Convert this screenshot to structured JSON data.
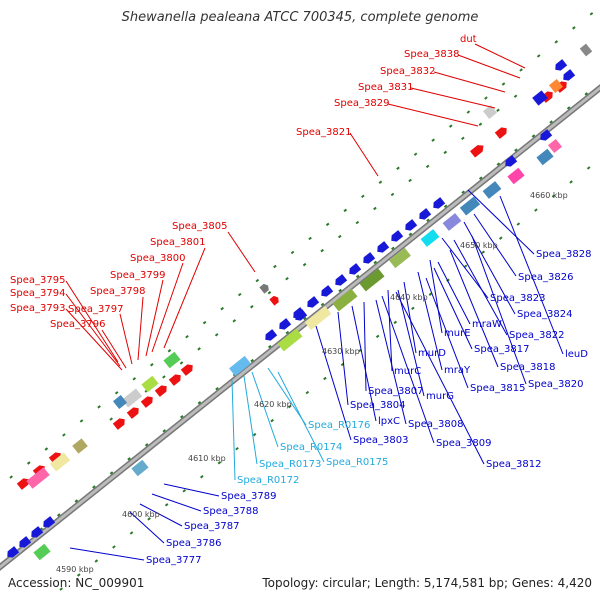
{
  "title": "Shewanella pealeana ATCC 700345, complete genome",
  "footer": {
    "accession": "Accession: NC_009901",
    "stats": "Topology: circular; Length: 5,174,581 bp; Genes: 4,420"
  },
  "colors": {
    "red_label": "#e00000",
    "blue_label": "#0000cc",
    "cyan_label": "#22aadd",
    "backbone": "#999999",
    "tick": "#2a7a2a"
  },
  "kbp_labels": [
    "4590 kbp",
    "4600 kbp",
    "4610 kbp",
    "4620 kbp",
    "4630 kbp",
    "4640 kbp",
    "4650 kbp",
    "4660 kbp"
  ],
  "red_labels": [
    "dut",
    "Spea_3838",
    "Spea_3832",
    "Spea_3831",
    "Spea_3829",
    "Spea_3821",
    "Spea_3805",
    "Spea_3801",
    "Spea_3800",
    "Spea_3799",
    "Spea_3798",
    "Spea_3797",
    "Spea_3796",
    "Spea_3795",
    "Spea_3794",
    "Spea_3793"
  ],
  "blue_labels": [
    "Spea_3828",
    "Spea_3826",
    "Spea_3823",
    "Spea_3824",
    "Spea_3822",
    "leuD",
    "mraW",
    "murE",
    "Spea_3817",
    "Spea_3818",
    "Spea_3820",
    "mraY",
    "murD",
    "Spea_3815",
    "murC",
    "murG",
    "Spea_3807",
    "Spea_3808",
    "Spea_3804",
    "lpxC",
    "Spea_3809",
    "Spea_3803",
    "Spea_3812",
    "Spea_3789",
    "Spea_3788",
    "Spea_3787",
    "Spea_3786",
    "Spea_3777"
  ],
  "cyan_labels": [
    "Spea_R0176",
    "Spea_R0174",
    "Spea_R0175",
    "Spea_R0173",
    "Spea_R0172"
  ]
}
